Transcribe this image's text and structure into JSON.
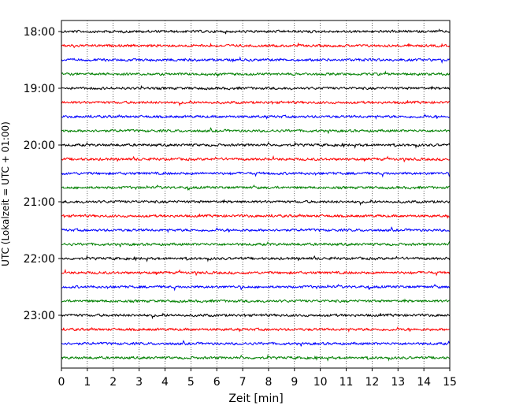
{
  "chart_data": {
    "type": "line",
    "description_kind": "helicorder seismogram",
    "xlabel": "Zeit  [min]",
    "ylabel": "UTC (Lokalzeit = UTC + 01:00)",
    "xlim": [
      0,
      15
    ],
    "x_ticks": [
      0,
      1,
      2,
      3,
      4,
      5,
      6,
      7,
      8,
      9,
      10,
      11,
      12,
      13,
      14,
      15
    ],
    "x_tick_labels": [
      "0",
      "1",
      "2",
      "3",
      "4",
      "5",
      "6",
      "7",
      "8",
      "9",
      "10",
      "11",
      "12",
      "13",
      "14",
      "15"
    ],
    "grid_x": "dotted",
    "minutes_per_row": 15,
    "hour_labels": [
      "18:00",
      "19:00",
      "20:00",
      "21:00",
      "22:00",
      "23:00"
    ],
    "row_colors": [
      "#000000",
      "#ff0000",
      "#0000ff",
      "#008000"
    ],
    "rows": [
      {
        "start": "18:00",
        "color": "#000000"
      },
      {
        "start": "18:15",
        "color": "#ff0000"
      },
      {
        "start": "18:30",
        "color": "#0000ff"
      },
      {
        "start": "18:45",
        "color": "#008000"
      },
      {
        "start": "19:00",
        "color": "#000000"
      },
      {
        "start": "19:15",
        "color": "#ff0000"
      },
      {
        "start": "19:30",
        "color": "#0000ff"
      },
      {
        "start": "19:45",
        "color": "#008000"
      },
      {
        "start": "20:00",
        "color": "#000000"
      },
      {
        "start": "20:15",
        "color": "#ff0000"
      },
      {
        "start": "20:30",
        "color": "#0000ff"
      },
      {
        "start": "20:45",
        "color": "#008000"
      },
      {
        "start": "21:00",
        "color": "#000000"
      },
      {
        "start": "21:15",
        "color": "#ff0000"
      },
      {
        "start": "21:30",
        "color": "#0000ff"
      },
      {
        "start": "21:45",
        "color": "#008000"
      },
      {
        "start": "22:00",
        "color": "#000000"
      },
      {
        "start": "22:15",
        "color": "#ff0000"
      },
      {
        "start": "22:30",
        "color": "#0000ff"
      },
      {
        "start": "22:45",
        "color": "#008000"
      },
      {
        "start": "23:00",
        "color": "#000000"
      },
      {
        "start": "23:15",
        "color": "#ff0000"
      },
      {
        "start": "23:30",
        "color": "#0000ff"
      },
      {
        "start": "23:45",
        "color": "#008000"
      }
    ]
  }
}
